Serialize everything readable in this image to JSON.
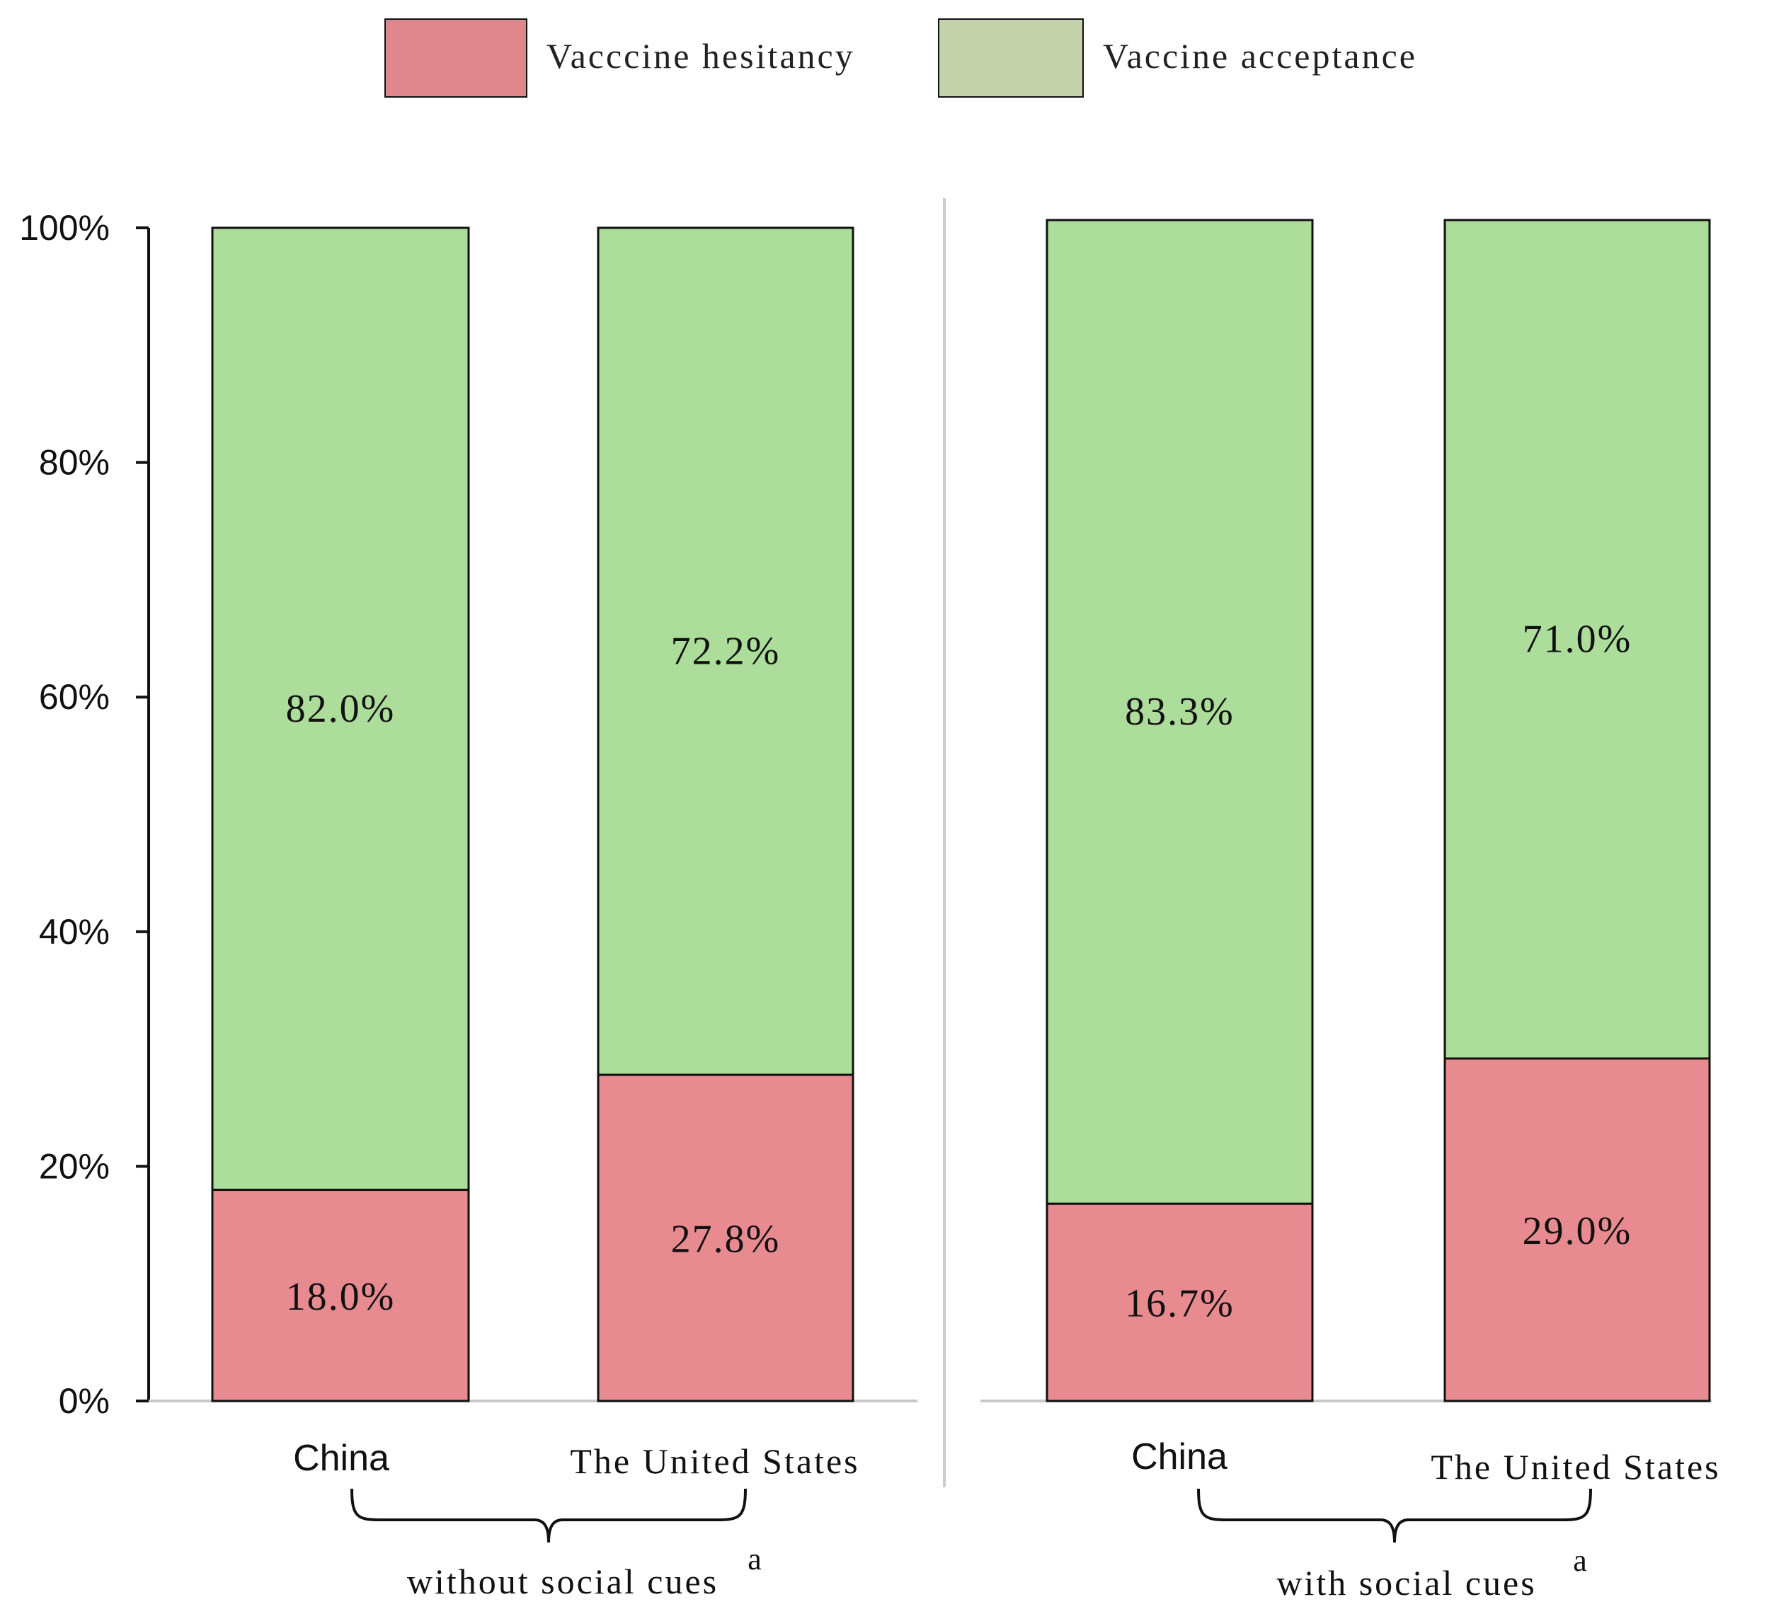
{
  "colors": {
    "hesitancy_fill": "#E88B90",
    "acceptance_fill": "#ACDD9A",
    "legend_hesitancy_fill": "#DD878D",
    "legend_acceptance_fill": "#C5D3AD",
    "bar_stroke": "#111111",
    "axis": "#111111",
    "baseline": "#C8C8C8",
    "divider": "#CCCCCC"
  },
  "chart_data": {
    "type": "bar",
    "stacked": true,
    "ylim": [
      0,
      100
    ],
    "y_ticks": [
      0,
      20,
      40,
      60,
      80,
      100
    ],
    "y_tick_labels": [
      "0%",
      "20%",
      "40%",
      "60%",
      "80%",
      "100%"
    ],
    "legend": {
      "position": "top-center",
      "entries": [
        {
          "key": "hesitancy",
          "label": "Vacccine hesitancy"
        },
        {
          "key": "acceptance",
          "label": "Vaccine acceptance"
        }
      ]
    },
    "panels": [
      {
        "group_label": "without social cues",
        "group_superscript": "a",
        "categories": [
          "China",
          "The United States"
        ],
        "series": [
          {
            "name": "Vaccine hesitancy",
            "key": "hesitancy",
            "values": [
              18.0,
              27.8
            ],
            "labels": [
              "18.0%",
              "27.8%"
            ]
          },
          {
            "name": "Vaccine acceptance",
            "key": "acceptance",
            "values": [
              82.0,
              72.2
            ],
            "labels": [
              "82.0%",
              "72.2%"
            ]
          }
        ]
      },
      {
        "group_label": "with social cues",
        "group_superscript": "a",
        "categories": [
          "China",
          "The United States"
        ],
        "series": [
          {
            "name": "Vaccine hesitancy",
            "key": "hesitancy",
            "values": [
              16.7,
              29.0
            ],
            "labels": [
              "16.7%",
              "29.0%"
            ]
          },
          {
            "name": "Vaccine acceptance",
            "key": "acceptance",
            "values": [
              83.3,
              71.0
            ],
            "labels": [
              "83.3%",
              "71.0%"
            ]
          }
        ]
      }
    ]
  }
}
